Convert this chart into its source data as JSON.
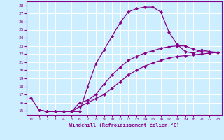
{
  "title": "",
  "xlabel": "Windchill (Refroidissement éolien,°C)",
  "background_color": "#cceeff",
  "grid_color": "#ffffff",
  "line_color": "#880088",
  "marker": "D",
  "markersize": 2.0,
  "linewidth": 0.9,
  "xlim": [
    -0.5,
    23.5
  ],
  "ylim": [
    14.5,
    28.5
  ],
  "yticks": [
    15,
    16,
    17,
    18,
    19,
    20,
    21,
    22,
    23,
    24,
    25,
    26,
    27,
    28
  ],
  "xticks": [
    0,
    1,
    2,
    3,
    4,
    5,
    6,
    7,
    8,
    9,
    10,
    11,
    12,
    13,
    14,
    15,
    16,
    17,
    18,
    19,
    20,
    21,
    22,
    23
  ],
  "line1_x": [
    0,
    1,
    2,
    3,
    4,
    5,
    6,
    7,
    8,
    9,
    10,
    11,
    12,
    13,
    14,
    15,
    16,
    17,
    18,
    19,
    20,
    21,
    22,
    23
  ],
  "line1_y": [
    16.6,
    15.1,
    14.9,
    14.9,
    14.9,
    14.9,
    14.9,
    18.0,
    20.8,
    22.5,
    24.2,
    25.9,
    27.2,
    27.6,
    27.8,
    27.8,
    27.2,
    24.7,
    23.2,
    22.3,
    22.1,
    22.5,
    22.3,
    22.2
  ],
  "line2_x": [
    1,
    2,
    3,
    4,
    5,
    6,
    7,
    8,
    9,
    10,
    11,
    12,
    13,
    14,
    15,
    16,
    17,
    18,
    19,
    20,
    21,
    22,
    23
  ],
  "line2_y": [
    15.1,
    14.9,
    14.9,
    14.9,
    14.9,
    15.5,
    16.0,
    16.5,
    17.0,
    17.8,
    18.6,
    19.4,
    20.0,
    20.5,
    20.9,
    21.2,
    21.5,
    21.7,
    21.8,
    21.9,
    22.0,
    22.1,
    22.2
  ],
  "line3_x": [
    1,
    2,
    3,
    4,
    5,
    6,
    7,
    8,
    9,
    10,
    11,
    12,
    13,
    14,
    15,
    16,
    17,
    18,
    19,
    20,
    21,
    22,
    23
  ],
  "line3_y": [
    15.1,
    14.9,
    14.9,
    14.9,
    14.9,
    16.0,
    16.3,
    17.0,
    18.3,
    19.4,
    20.4,
    21.2,
    21.7,
    22.1,
    22.4,
    22.7,
    22.9,
    23.0,
    23.0,
    22.6,
    22.3,
    22.2,
    22.2
  ]
}
